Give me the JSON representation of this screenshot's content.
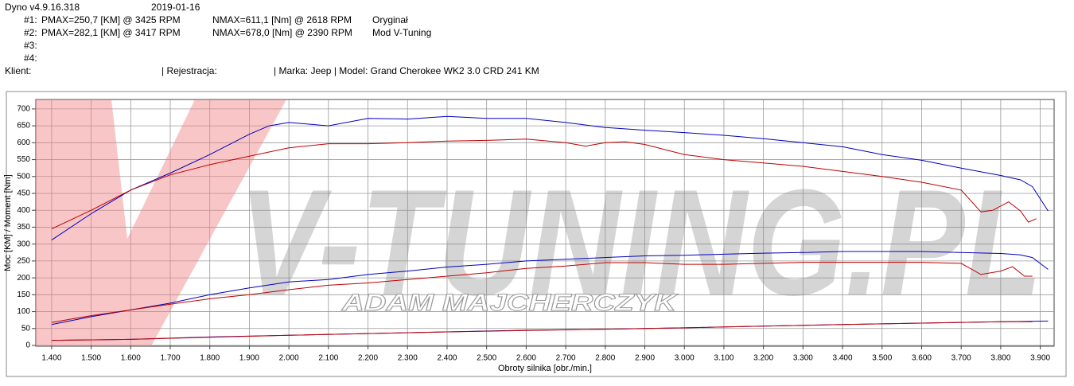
{
  "header": {
    "version": "Dyno v4.9.16.318",
    "date": "2019-01-16",
    "runs": [
      {
        "id": "#1:",
        "pmax": "PMAX=250,7 [KM] @ 3425 RPM",
        "nmax": "NMAX=611,1 [Nm] @ 2618 RPM",
        "label": "Oryginał"
      },
      {
        "id": "#2:",
        "pmax": "PMAX=282,1 [KM] @ 3417 RPM",
        "nmax": "NMAX=678,0 [Nm] @ 2390 RPM",
        "label": "Mod V-Tuning"
      },
      {
        "id": "#3:"
      },
      {
        "id": "#4:"
      }
    ],
    "client": "Klient:",
    "registration": "| Rejestracja:",
    "vehicle": "| Marka: Jeep | Model: Grand Cherokee WK2 3.0 CRD 241 KM"
  },
  "watermark": {
    "brand": "V-TUNING.PL",
    "owner": "ADAM MAJCHERCZYK"
  },
  "chart_data": {
    "type": "line",
    "x_label": "Obroty silnika [obr./min.]",
    "y_label": "Moc [KM] / Moment [Nm]",
    "xlim": [
      1360,
      3935
    ],
    "ylim": [
      0,
      728
    ],
    "grid": true,
    "xticks": [
      {
        "value": 1400,
        "label": "1.400"
      },
      {
        "value": 1500,
        "label": "1.500"
      },
      {
        "value": 1600,
        "label": "1.600"
      },
      {
        "value": 1700,
        "label": "1.700"
      },
      {
        "value": 1800,
        "label": "1.800"
      },
      {
        "value": 1900,
        "label": "1.900"
      },
      {
        "value": 2000,
        "label": "2.000"
      },
      {
        "value": 2100,
        "label": "2.100"
      },
      {
        "value": 2200,
        "label": "2.200"
      },
      {
        "value": 2300,
        "label": "2.300"
      },
      {
        "value": 2400,
        "label": "2.400"
      },
      {
        "value": 2500,
        "label": "2.500"
      },
      {
        "value": 2600,
        "label": "2.600"
      },
      {
        "value": 2700,
        "label": "2.700"
      },
      {
        "value": 2800,
        "label": "2.800"
      },
      {
        "value": 2900,
        "label": "2.900"
      },
      {
        "value": 3000,
        "label": "3.000"
      },
      {
        "value": 3100,
        "label": "3.100"
      },
      {
        "value": 3200,
        "label": "3.200"
      },
      {
        "value": 3300,
        "label": "3.300"
      },
      {
        "value": 3400,
        "label": "3.400"
      },
      {
        "value": 3500,
        "label": "3.500"
      },
      {
        "value": 3600,
        "label": "3.600"
      },
      {
        "value": 3700,
        "label": "3.700"
      },
      {
        "value": 3800,
        "label": "3.800"
      },
      {
        "value": 3900,
        "label": "3.900"
      }
    ],
    "yticks": [
      0,
      50,
      100,
      150,
      200,
      250,
      300,
      350,
      400,
      450,
      500,
      550,
      600,
      650,
      700
    ],
    "series": [
      {
        "color": "#0000c0",
        "x": [
          1400,
          1500,
          1600,
          1700,
          1800,
          1900,
          1950,
          2000,
          2100,
          2200,
          2300,
          2400,
          2500,
          2600,
          2700,
          2800,
          2900,
          3000,
          3100,
          3200,
          3300,
          3400,
          3500,
          3600,
          3700,
          3800,
          3850,
          3880,
          3920
        ],
        "values": [
          312,
          390,
          460,
          510,
          565,
          625,
          650,
          660,
          650,
          672,
          670,
          678,
          672,
          672,
          660,
          645,
          637,
          630,
          622,
          612,
          600,
          588,
          565,
          548,
          525,
          503,
          490,
          470,
          398
        ]
      },
      {
        "color": "#c00000",
        "x": [
          1400,
          1500,
          1600,
          1700,
          1800,
          1900,
          2000,
          2100,
          2200,
          2300,
          2400,
          2500,
          2600,
          2700,
          2750,
          2800,
          2850,
          2900,
          3000,
          3100,
          3200,
          3300,
          3400,
          3500,
          3600,
          3700,
          3750,
          3780,
          3820,
          3850,
          3870,
          3890
        ],
        "values": [
          345,
          400,
          460,
          505,
          535,
          560,
          585,
          597,
          597,
          600,
          605,
          607,
          611,
          600,
          590,
          600,
          603,
          595,
          565,
          550,
          540,
          530,
          515,
          500,
          483,
          460,
          395,
          400,
          425,
          398,
          365,
          375
        ]
      },
      {
        "color": "#0000c0",
        "x": [
          1400,
          1500,
          1600,
          1700,
          1800,
          1900,
          2000,
          2100,
          2200,
          2300,
          2400,
          2500,
          2600,
          2700,
          2800,
          2900,
          3000,
          3100,
          3200,
          3300,
          3400,
          3500,
          3600,
          3700,
          3800,
          3850,
          3880,
          3920
        ],
        "values": [
          62,
          85,
          105,
          125,
          150,
          170,
          188,
          195,
          210,
          220,
          232,
          240,
          250,
          255,
          260,
          265,
          267,
          270,
          273,
          275,
          278,
          278,
          278,
          275,
          272,
          268,
          260,
          225
        ]
      },
      {
        "color": "#c00000",
        "x": [
          1400,
          1500,
          1600,
          1700,
          1800,
          1900,
          2000,
          2100,
          2200,
          2300,
          2400,
          2500,
          2600,
          2700,
          2800,
          2900,
          3000,
          3100,
          3200,
          3300,
          3400,
          3500,
          3600,
          3700,
          3750,
          3800,
          3830,
          3860,
          3880
        ],
        "values": [
          68,
          88,
          105,
          122,
          138,
          150,
          165,
          178,
          185,
          195,
          205,
          215,
          228,
          235,
          245,
          245,
          240,
          240,
          243,
          246,
          246,
          246,
          246,
          243,
          210,
          220,
          233,
          205,
          205
        ]
      },
      {
        "color": "#0000c0",
        "x": [
          1400,
          1600,
          1800,
          2000,
          2200,
          2400,
          2600,
          2800,
          3000,
          3200,
          3400,
          3600,
          3800,
          3920
        ],
        "values": [
          15,
          18,
          25,
          30,
          35,
          40,
          45,
          48,
          52,
          57,
          62,
          66,
          70,
          72
        ]
      },
      {
        "color": "#c00000",
        "x": [
          1400,
          1600,
          1800,
          2000,
          2200,
          2400,
          2600,
          2800,
          3000,
          3200,
          3400,
          3600,
          3800,
          3880
        ],
        "values": [
          15,
          18,
          24,
          30,
          35,
          40,
          44,
          48,
          52,
          57,
          62,
          66,
          70,
          70
        ]
      }
    ]
  }
}
